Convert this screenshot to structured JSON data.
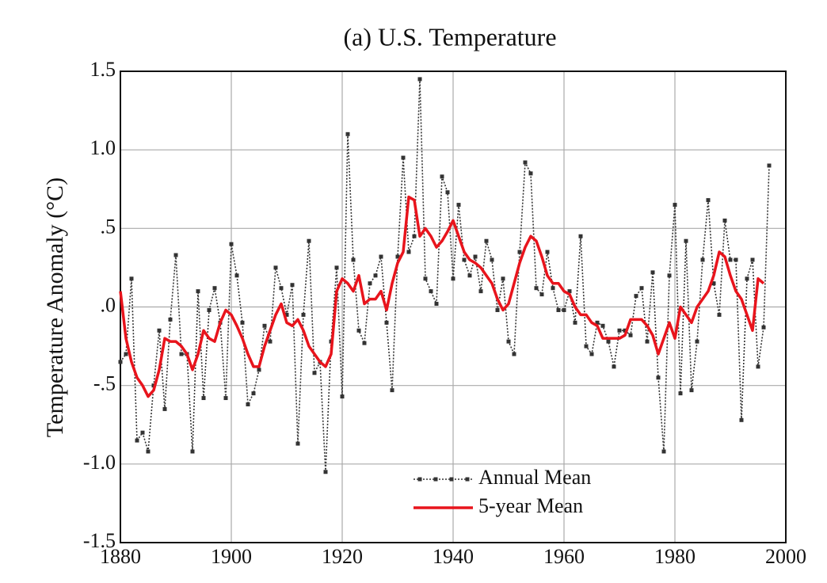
{
  "chart_data": {
    "type": "line",
    "title": "(a)  U.S. Temperature",
    "y_label": "Temperature Anomaly (°C)",
    "x": [
      1880,
      1881,
      1882,
      1883,
      1884,
      1885,
      1886,
      1887,
      1888,
      1889,
      1890,
      1891,
      1892,
      1893,
      1894,
      1895,
      1896,
      1897,
      1898,
      1899,
      1900,
      1901,
      1902,
      1903,
      1904,
      1905,
      1906,
      1907,
      1908,
      1909,
      1910,
      1911,
      1912,
      1913,
      1914,
      1915,
      1916,
      1917,
      1918,
      1919,
      1920,
      1921,
      1922,
      1923,
      1924,
      1925,
      1926,
      1927,
      1928,
      1929,
      1930,
      1931,
      1932,
      1933,
      1934,
      1935,
      1936,
      1937,
      1938,
      1939,
      1940,
      1941,
      1942,
      1943,
      1944,
      1945,
      1946,
      1947,
      1948,
      1949,
      1950,
      1951,
      1952,
      1953,
      1954,
      1955,
      1956,
      1957,
      1958,
      1959,
      1960,
      1961,
      1962,
      1963,
      1964,
      1965,
      1966,
      1967,
      1968,
      1969,
      1970,
      1971,
      1972,
      1973,
      1974,
      1975,
      1976,
      1977,
      1978,
      1979,
      1980,
      1981,
      1982,
      1983,
      1984,
      1985,
      1986,
      1987,
      1988,
      1989,
      1990,
      1991,
      1992,
      1993,
      1994,
      1995,
      1996,
      1997
    ],
    "series": [
      {
        "name": "Annual Mean",
        "color": "#333333",
        "style": "dotted-markers",
        "values": [
          -0.35,
          -0.3,
          0.18,
          -0.85,
          -0.8,
          -0.92,
          -0.5,
          -0.15,
          -0.65,
          -0.08,
          0.33,
          -0.3,
          -0.3,
          -0.92,
          0.1,
          -0.58,
          -0.02,
          0.12,
          -0.1,
          -0.58,
          0.4,
          0.2,
          -0.1,
          -0.62,
          -0.55,
          -0.4,
          -0.12,
          -0.22,
          0.25,
          0.12,
          -0.05,
          0.14,
          -0.87,
          -0.05,
          0.42,
          -0.42,
          -0.35,
          -1.05,
          -0.22,
          0.25,
          -0.57,
          1.1,
          0.3,
          -0.15,
          -0.23,
          0.15,
          0.2,
          0.32,
          -0.1,
          -0.53,
          0.32,
          0.95,
          0.35,
          0.45,
          1.45,
          0.18,
          0.1,
          0.02,
          0.83,
          0.73,
          0.18,
          0.65,
          0.3,
          0.2,
          0.32,
          0.1,
          0.42,
          0.3,
          -0.02,
          0.18,
          -0.22,
          -0.3,
          0.35,
          0.92,
          0.85,
          0.12,
          0.08,
          0.35,
          0.12,
          -0.02,
          -0.02,
          0.1,
          -0.1,
          0.45,
          -0.25,
          -0.3,
          -0.1,
          -0.12,
          -0.22,
          -0.38,
          -0.15,
          -0.15,
          -0.18,
          0.07,
          0.12,
          -0.22,
          0.22,
          -0.45,
          -0.92,
          0.2,
          0.65,
          -0.55,
          0.42,
          -0.53,
          -0.22,
          0.3,
          0.68,
          0.15,
          -0.05,
          0.55,
          0.3,
          0.3,
          -0.72,
          0.18,
          0.3,
          -0.38,
          -0.13,
          0.9
        ]
      },
      {
        "name": "5-year Mean",
        "color": "#e8141c",
        "style": "solid",
        "values": [
          0.1,
          -0.2,
          -0.35,
          -0.45,
          -0.5,
          -0.57,
          -0.53,
          -0.4,
          -0.2,
          -0.22,
          -0.22,
          -0.25,
          -0.3,
          -0.4,
          -0.3,
          -0.15,
          -0.2,
          -0.22,
          -0.1,
          -0.02,
          -0.05,
          -0.12,
          -0.2,
          -0.3,
          -0.38,
          -0.38,
          -0.25,
          -0.15,
          -0.05,
          0.02,
          -0.1,
          -0.12,
          -0.08,
          -0.15,
          -0.25,
          -0.3,
          -0.35,
          -0.38,
          -0.3,
          0.1,
          0.18,
          0.15,
          0.1,
          0.2,
          0.02,
          0.05,
          0.05,
          0.1,
          -0.02,
          0.15,
          0.28,
          0.35,
          0.7,
          0.68,
          0.45,
          0.5,
          0.45,
          0.38,
          0.42,
          0.48,
          0.55,
          0.45,
          0.35,
          0.3,
          0.28,
          0.25,
          0.2,
          0.15,
          0.05,
          -0.02,
          0.02,
          0.15,
          0.28,
          0.38,
          0.45,
          0.42,
          0.32,
          0.2,
          0.15,
          0.15,
          0.1,
          0.08,
          0.0,
          -0.05,
          -0.05,
          -0.1,
          -0.12,
          -0.2,
          -0.2,
          -0.2,
          -0.2,
          -0.18,
          -0.08,
          -0.08,
          -0.08,
          -0.12,
          -0.18,
          -0.3,
          -0.2,
          -0.1,
          -0.2,
          0.0,
          -0.05,
          -0.1,
          0.0,
          0.05,
          0.1,
          0.2,
          0.35,
          0.32,
          0.2,
          0.1,
          0.05,
          -0.05,
          -0.15,
          0.18,
          0.15,
          null
        ]
      }
    ],
    "xlim": [
      1880,
      2000
    ],
    "xticks": [
      1880,
      1900,
      1920,
      1940,
      1960,
      1980,
      2000
    ],
    "ylim": [
      -1.5,
      1.5
    ],
    "yticks": [
      {
        "value": -1.5,
        "label": "-1.5"
      },
      {
        "value": -1.0,
        "label": "-1.0"
      },
      {
        "value": -0.5,
        "label": "-.5"
      },
      {
        "value": 0,
        "label": ".0"
      },
      {
        "value": 0.5,
        "label": ".5"
      },
      {
        "value": 1.0,
        "label": "1.0"
      },
      1.5
    ],
    "grid": true,
    "legend": "lower right"
  }
}
